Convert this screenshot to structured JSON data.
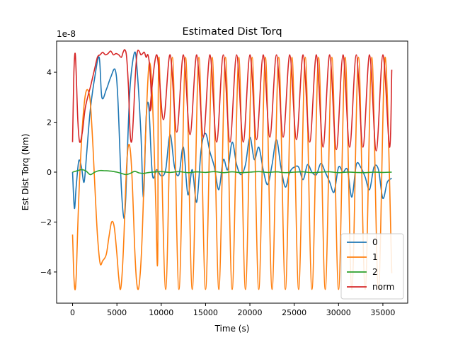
{
  "chart_data": {
    "type": "line",
    "title": "Estimated Dist Torq",
    "xlabel": "Time (s)",
    "ylabel": "Est Dist Torq (Nm)",
    "y_offset_label": "1e-8",
    "xlim": [
      -1800,
      37800
    ],
    "ylim": [
      -5.25,
      5.25
    ],
    "xticks": [
      0,
      5000,
      10000,
      15000,
      20000,
      25000,
      30000,
      35000
    ],
    "xtick_labels": [
      "0",
      "5000",
      "10000",
      "15000",
      "20000",
      "25000",
      "30000",
      "35000"
    ],
    "yticks": [
      -4,
      -2,
      0,
      2,
      4
    ],
    "ytick_labels": [
      "−4",
      "−2",
      "0",
      "2",
      "4"
    ],
    "grid": false,
    "legend_position": "lower-right",
    "series": [
      {
        "name": "0",
        "color": "#1f77b4",
        "x": [
          0,
          200,
          400,
          700,
          1000,
          1300,
          1600,
          2000,
          2500,
          3000,
          3300,
          3800,
          4300,
          4800,
          5100,
          5500,
          5800,
          6000,
          6200,
          6500,
          7000,
          7300,
          7700,
          8000,
          8300,
          8600,
          9000,
          9500,
          10000,
          10500,
          11000,
          11500,
          12000,
          12500,
          13000,
          13500,
          14000,
          14500,
          15000,
          15500,
          16000,
          16500,
          17000,
          17500,
          18000,
          18500,
          19000,
          19500,
          20000,
          20500,
          21000,
          21500,
          22000,
          22500,
          23000,
          23500,
          24000,
          24500,
          25000,
          25500,
          26000,
          26500,
          27000,
          27500,
          28000,
          28500,
          29000,
          29500,
          30000,
          30500,
          31000,
          31500,
          32000,
          32500,
          33000,
          33500,
          34000,
          34500,
          35000,
          35500,
          36000
        ],
        "y": [
          0.0,
          -1.45,
          -0.6,
          0.45,
          0.2,
          -0.4,
          0.8,
          2.5,
          3.8,
          4.6,
          3.0,
          3.3,
          3.8,
          4.1,
          3.0,
          -0.6,
          -1.85,
          -1.0,
          1.0,
          3.5,
          4.8,
          4.0,
          1.6,
          -1.0,
          2.2,
          2.6,
          -0.1,
          0.1,
          -0.15,
          0.1,
          1.5,
          0.2,
          -0.1,
          1.0,
          -0.9,
          0.1,
          -1.2,
          0.9,
          1.55,
          0.8,
          0.2,
          -0.7,
          0.5,
          0.1,
          1.2,
          0.3,
          -0.1,
          0.3,
          1.4,
          0.5,
          1.0,
          0.1,
          -0.5,
          0.3,
          1.3,
          0.2,
          -0.6,
          0.0,
          0.2,
          0.2,
          -0.3,
          0.3,
          0.0,
          -0.1,
          0.35,
          0.0,
          -0.4,
          -0.8,
          0.2,
          0.0,
          0.1,
          -1.0,
          0.3,
          0.2,
          -0.2,
          -0.7,
          0.2,
          0.1,
          -1.05,
          -0.4,
          -0.25
        ]
      },
      {
        "name": "1",
        "color": "#ff7f0e",
        "x": [
          0,
          150,
          300,
          450,
          600,
          800,
          1100,
          1400,
          1700,
          2000,
          2300,
          2500,
          2800,
          3100,
          3400,
          3800,
          4100,
          4400,
          4700,
          5000,
          5200,
          5400,
          5600,
          5800,
          6000,
          6200,
          6400,
          6600,
          6800,
          7000,
          7200,
          7400,
          7600,
          7800,
          8000,
          8200,
          8400,
          8600,
          8800,
          9000,
          9200,
          9400,
          9600
        ],
        "y": [
          -2.5,
          -4.2,
          -4.7,
          -3.8,
          -2.0,
          -0.2,
          1.8,
          3.0,
          3.3,
          2.8,
          1.0,
          -0.5,
          -2.5,
          -3.65,
          -3.55,
          -3.3,
          -2.6,
          -2.0,
          -2.2,
          -3.3,
          -4.2,
          -4.7,
          -4.0,
          -2.5,
          -0.5,
          0.8,
          1.1,
          0.5,
          -1.0,
          -3.0,
          -4.3,
          -4.7,
          -4.2,
          -3.0,
          -1.0,
          1.2,
          3.0,
          4.25,
          4.2,
          3.0,
          1.0,
          -1.5,
          -3.5
        ]
      },
      {
        "name": "2",
        "color": "#2ca02c",
        "x": [
          0,
          500,
          1000,
          1500,
          2000,
          2500,
          3000,
          3500,
          4000,
          4500,
          5000,
          5500,
          6000,
          6500,
          7000,
          7500,
          8000,
          8500,
          9000,
          10000,
          11000,
          12000,
          13000,
          14000,
          15000,
          16000,
          17000,
          18000,
          19000,
          20000,
          21000,
          22000,
          23000,
          24000,
          25000,
          26000,
          27000,
          28000,
          29000,
          30000,
          31000,
          32000,
          33000,
          34000,
          35000,
          36000
        ],
        "y": [
          0.0,
          0.05,
          0.1,
          0.05,
          -0.1,
          0.0,
          0.06,
          0.06,
          0.05,
          0.03,
          0.0,
          -0.05,
          -0.1,
          -0.05,
          0.03,
          -0.03,
          -0.05,
          -0.02,
          0.0,
          0.02,
          -0.01,
          0.02,
          -0.02,
          0.01,
          -0.01,
          0.02,
          -0.02,
          0.01,
          -0.02,
          0.0,
          0.02,
          -0.01,
          0.01,
          -0.02,
          0.0,
          0.01,
          -0.02,
          0.0,
          0.01,
          -0.02,
          0.0,
          -0.01,
          -0.02,
          0.0,
          -0.01,
          0.0
        ]
      },
      {
        "name": "norm",
        "color": "#d62728",
        "x": [
          0,
          150,
          300,
          450,
          600,
          800,
          1100,
          1400,
          1700,
          2000,
          2400,
          2800,
          3100,
          3400,
          3700,
          4000,
          4300,
          4600,
          4900,
          5200,
          5500,
          5700,
          5900,
          6100,
          6300,
          6500,
          6700,
          6900,
          7100,
          7300,
          7500,
          7700,
          7900,
          8100,
          8300,
          8500,
          8700,
          8900
        ],
        "y": [
          1.2,
          4.0,
          4.75,
          3.5,
          2.0,
          1.2,
          1.6,
          2.5,
          3.0,
          3.4,
          4.0,
          4.6,
          4.7,
          4.8,
          4.7,
          4.75,
          4.85,
          4.7,
          4.75,
          4.7,
          4.6,
          4.8,
          4.9,
          4.6,
          3.4,
          1.5,
          1.3,
          2.5,
          4.0,
          4.8,
          4.85,
          4.7,
          4.75,
          4.8,
          4.6,
          4.7,
          4.2,
          2.8
        ]
      }
    ],
    "norm_oscillation": {
      "peak_times": [
        9500,
        11000,
        12500,
        14000,
        15500,
        17000,
        18500,
        20000,
        21500,
        23000,
        24500,
        26000,
        27500,
        29000,
        30500,
        32000,
        33500,
        35000
      ],
      "peak_value": 4.7,
      "trough_times": [
        8750,
        10250,
        11750,
        13250,
        14750,
        16250,
        17750,
        19250,
        20750,
        22250,
        23750,
        25250,
        26750,
        28250,
        29750,
        31250,
        32750,
        34250,
        35750
      ],
      "trough_values": [
        2.6,
        2.1,
        1.6,
        1.5,
        1.4,
        1.2,
        1.2,
        1.2,
        1.3,
        1.4,
        1.4,
        1.3,
        1.2,
        1.0,
        0.9,
        1.0,
        1.0,
        0.85,
        1.0
      ],
      "end": [
        36000,
        4.1
      ]
    },
    "series1_oscillation": {
      "peak_times": [
        9750,
        11250,
        12750,
        14250,
        15750,
        17250,
        18750,
        20250,
        21750,
        23250,
        24750,
        26250,
        27750,
        29250,
        30750,
        32250,
        33750,
        35250
      ],
      "peak_value": 4.6,
      "trough_times": [
        10500,
        12000,
        13500,
        15000,
        16500,
        18000,
        19500,
        21000,
        22500,
        24000,
        25500,
        27000,
        28500,
        30000,
        31500,
        33000,
        34500
      ],
      "trough_value": -4.7,
      "end": [
        36000,
        -4.05
      ]
    }
  }
}
